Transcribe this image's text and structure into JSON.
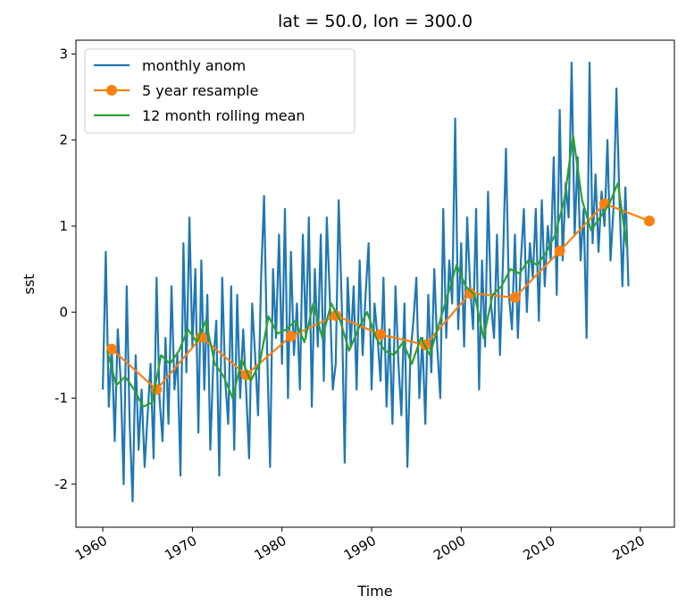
{
  "chart_data": {
    "type": "line",
    "title": "lat = 50.0, lon = 300.0",
    "xlabel": "Time",
    "ylabel": "sst",
    "xlim": [
      1957.0,
      2023.8
    ],
    "ylim": [
      -2.5,
      3.16
    ],
    "xticks": [
      1960,
      1970,
      1980,
      1990,
      2000,
      2010,
      2020
    ],
    "yticks": [
      -2,
      -1,
      0,
      1,
      2,
      3
    ],
    "legend": "upper left",
    "series": [
      {
        "name": "monthly anom",
        "color": "#1f77b4",
        "x": [
          1960,
          1960.33,
          1960.67,
          1961,
          1961.33,
          1961.67,
          1962,
          1962.33,
          1962.67,
          1963,
          1963.33,
          1963.67,
          1964,
          1964.33,
          1964.67,
          1965,
          1965.33,
          1965.67,
          1966,
          1966.33,
          1966.67,
          1967,
          1967.33,
          1967.67,
          1968,
          1968.33,
          1968.67,
          1969,
          1969.33,
          1969.67,
          1970,
          1970.33,
          1970.67,
          1971,
          1971.33,
          1971.67,
          1972,
          1972.33,
          1972.67,
          1973,
          1973.33,
          1973.67,
          1974,
          1974.33,
          1974.67,
          1975,
          1975.33,
          1975.67,
          1976,
          1976.33,
          1976.67,
          1977,
          1977.33,
          1977.67,
          1978,
          1978.33,
          1978.67,
          1979,
          1979.33,
          1979.67,
          1980,
          1980.33,
          1980.67,
          1981,
          1981.33,
          1981.67,
          1982,
          1982.33,
          1982.67,
          1983,
          1983.33,
          1983.67,
          1984,
          1984.33,
          1984.67,
          1985,
          1985.33,
          1985.67,
          1986,
          1986.33,
          1986.67,
          1987,
          1987.33,
          1987.67,
          1988,
          1988.33,
          1988.67,
          1989,
          1989.33,
          1989.67,
          1990,
          1990.33,
          1990.67,
          1991,
          1991.33,
          1991.67,
          1992,
          1992.33,
          1992.67,
          1993,
          1993.33,
          1993.67,
          1994,
          1994.33,
          1994.67,
          1995,
          1995.33,
          1995.67,
          1996,
          1996.33,
          1996.67,
          1997,
          1997.33,
          1997.67,
          1998,
          1998.33,
          1998.67,
          1999,
          1999.33,
          1999.67,
          2000,
          2000.33,
          2000.67,
          2001,
          2001.33,
          2001.67,
          2002,
          2002.33,
          2002.67,
          2003,
          2003.33,
          2003.67,
          2004,
          2004.33,
          2004.67,
          2005,
          2005.33,
          2005.67,
          2006,
          2006.33,
          2006.67,
          2007,
          2007.33,
          2007.67,
          2008,
          2008.33,
          2008.67,
          2009,
          2009.33,
          2009.67,
          2010,
          2010.33,
          2010.67,
          2011,
          2011.33,
          2011.67,
          2012,
          2012.33,
          2012.67,
          2013,
          2013.33,
          2013.67,
          2014,
          2014.33,
          2014.67,
          2015,
          2015.33,
          2015.67,
          2016,
          2016.33,
          2016.67,
          2017,
          2017.33,
          2017.67,
          2018,
          2018.33,
          2018.67
        ],
        "values": [
          -0.9,
          0.7,
          -1.1,
          -0.4,
          -1.5,
          -0.2,
          -0.8,
          -2.0,
          0.3,
          -1.3,
          -2.2,
          -0.5,
          -1.6,
          -0.9,
          -1.8,
          -1.2,
          -0.6,
          -1.7,
          0.4,
          -1.0,
          -1.5,
          -0.3,
          -1.3,
          0.3,
          -0.9,
          -0.5,
          -1.9,
          0.8,
          -0.7,
          1.1,
          -0.4,
          0.5,
          -1.4,
          0.6,
          -0.9,
          0.2,
          -1.6,
          -0.6,
          -0.1,
          -1.9,
          0.4,
          -0.8,
          -1.3,
          0.3,
          -1.6,
          0.2,
          -1.0,
          -0.2,
          -0.9,
          -1.7,
          0.1,
          -0.5,
          -1.2,
          0.4,
          1.35,
          -0.4,
          -1.8,
          0.5,
          -0.3,
          0.9,
          -0.6,
          1.2,
          -1.0,
          0.7,
          -0.5,
          0.1,
          -0.9,
          0.9,
          -0.3,
          1.1,
          -1.1,
          0.5,
          -0.4,
          0.9,
          -0.8,
          1.1,
          0.2,
          -0.9,
          -0.6,
          1.3,
          0.1,
          -1.75,
          0.4,
          -0.4,
          0.3,
          -0.9,
          0.6,
          -0.5,
          0.2,
          0.8,
          -0.9,
          0.1,
          -0.3,
          -0.8,
          0.4,
          -1.1,
          -0.2,
          -1.3,
          0.3,
          -0.6,
          -1.2,
          0.1,
          -1.8,
          -0.5,
          -0.1,
          0.4,
          -1.0,
          -0.3,
          -1.3,
          0.2,
          -0.7,
          0.5,
          -0.4,
          -1.0,
          1.2,
          -0.3,
          0.6,
          0.1,
          2.25,
          -0.2,
          0.8,
          -0.4,
          1.1,
          0.3,
          -0.2,
          1.2,
          -0.9,
          0.6,
          -0.4,
          1.4,
          0.1,
          -0.3,
          0.9,
          -0.5,
          0.6,
          1.9,
          0.2,
          -0.2,
          0.9,
          -0.3,
          0.6,
          1.2,
          0.0,
          0.8,
          0.4,
          1.2,
          -0.1,
          1.3,
          0.3,
          1.0,
          0.6,
          1.8,
          0.2,
          2.35,
          0.6,
          1.5,
          1.1,
          2.9,
          0.9,
          1.8,
          0.6,
          1.2,
          -0.3,
          2.9,
          0.8,
          1.6,
          0.7,
          1.4,
          1.0,
          2.0,
          0.6,
          1.2,
          2.6,
          1.3,
          0.3,
          1.45,
          0.3
        ]
      },
      {
        "name": "5 year resample",
        "color": "#ff7f0e",
        "marker": "o",
        "x": [
          1961,
          1966,
          1971,
          1976,
          1981,
          1986,
          1991,
          1996,
          2001,
          2006,
          2011,
          2016,
          2021
        ],
        "values": [
          -0.43,
          -0.9,
          -0.29,
          -0.73,
          -0.28,
          -0.04,
          -0.26,
          -0.38,
          0.22,
          0.17,
          0.71,
          1.26,
          1.06
        ]
      },
      {
        "name": "12 month rolling mean",
        "color": "#2ca02c",
        "x": [
          1960.5,
          1961.5,
          1962.5,
          1963.5,
          1964.5,
          1965.5,
          1966.5,
          1967.5,
          1968.5,
          1969.5,
          1970.5,
          1971.5,
          1972.5,
          1973.5,
          1974.5,
          1975.5,
          1976.5,
          1977.5,
          1978.5,
          1979.5,
          1980.5,
          1981.5,
          1982.5,
          1983.5,
          1984.5,
          1985.5,
          1986.5,
          1987.5,
          1988.5,
          1989.5,
          1990.5,
          1991.5,
          1992.5,
          1993.5,
          1994.5,
          1995.5,
          1996.5,
          1997.5,
          1998.5,
          1999.5,
          2000.5,
          2001.5,
          2002.5,
          2003.5,
          2004.5,
          2005.5,
          2006.5,
          2007.5,
          2008.5,
          2009.5,
          2010.5,
          2011.5,
          2012.5,
          2013.5,
          2014.5,
          2015.5,
          2016.5,
          2017.5,
          2018.5
        ],
        "values": [
          -0.45,
          -0.85,
          -0.75,
          -0.9,
          -1.1,
          -1.05,
          -0.5,
          -0.6,
          -0.45,
          -0.2,
          -0.35,
          -0.1,
          -0.6,
          -0.75,
          -1.0,
          -0.55,
          -0.8,
          -0.6,
          -0.05,
          -0.25,
          -0.2,
          -0.1,
          -0.35,
          0.1,
          -0.3,
          0.1,
          -0.1,
          -0.45,
          -0.2,
          0.0,
          -0.3,
          -0.45,
          -0.5,
          -0.35,
          -0.6,
          -0.3,
          -0.5,
          -0.15,
          0.2,
          0.55,
          0.3,
          0.2,
          -0.3,
          0.2,
          0.3,
          0.5,
          0.45,
          0.6,
          0.55,
          0.7,
          0.9,
          1.3,
          2.05,
          1.3,
          0.95,
          1.1,
          1.25,
          1.5,
          0.75
        ]
      }
    ]
  }
}
